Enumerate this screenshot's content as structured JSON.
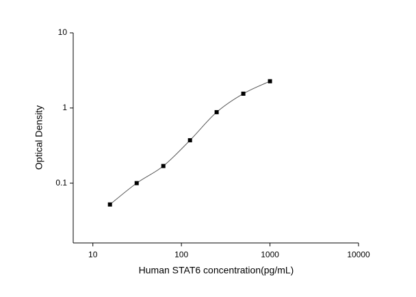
{
  "chart_data": {
    "type": "scatter",
    "x_label": "Human STAT6 concentration(pg/mL)",
    "y_label": "Optical Density",
    "x_scale": "log",
    "y_scale": "log",
    "xlim": [
      6,
      10000
    ],
    "ylim": [
      0.016,
      10
    ],
    "xticks": [
      10,
      100,
      1000,
      10000
    ],
    "yticks": [
      0.1,
      1,
      10
    ],
    "fit_curve": true,
    "series": [
      {
        "color": "#000000",
        "x": [
          15.6,
          31.25,
          62.5,
          125,
          250,
          500,
          1000
        ],
        "values": [
          0.052,
          0.1,
          0.169,
          0.372,
          0.88,
          1.55,
          2.27
        ]
      }
    ]
  }
}
